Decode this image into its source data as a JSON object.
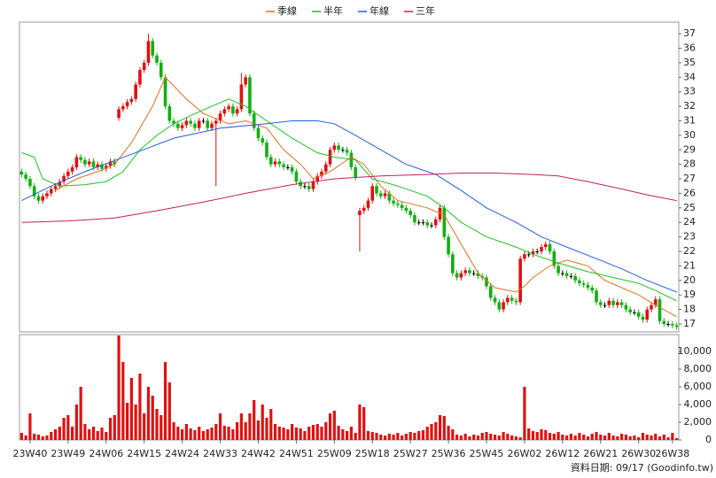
{
  "chart_data": [
    {
      "type": "candlestick",
      "legend": "top",
      "up_color": "#e01010",
      "down_color": "#10b010",
      "flat_color": "#000000",
      "xlim": [
        -0.5,
        155.5
      ],
      "ylim": [
        16.45,
        37.8
      ],
      "yticks": [
        17,
        18,
        19,
        20,
        21,
        22,
        23,
        24,
        25,
        26,
        27,
        28,
        29,
        30,
        31,
        32,
        33,
        34,
        35,
        36,
        37
      ],
      "open": [
        27.5,
        27.3,
        27.0,
        26.5,
        25.8,
        25.5,
        25.8,
        26.0,
        26.3,
        26.5,
        26.8,
        27.2,
        27.5,
        27.8,
        28.5,
        28.3,
        28.0,
        28.2,
        27.8,
        28.0,
        27.7,
        27.9,
        28.2,
        31.2,
        31.8,
        32.0,
        32.3,
        32.5,
        33.5,
        34.5,
        35.0,
        36.5,
        35.5,
        35.0,
        34.0,
        32.0,
        31.0,
        30.8,
        30.5,
        30.7,
        31.0,
        30.8,
        30.5,
        31.0,
        31.0,
        30.5,
        30.8,
        31.0,
        31.5,
        31.8,
        32.0,
        31.5,
        31.8,
        33.5,
        34.0,
        31.5,
        30.5,
        29.8,
        29.5,
        28.5,
        28.0,
        28.2,
        28.0,
        27.8,
        27.8,
        27.5,
        26.8,
        26.5,
        26.5,
        26.3,
        26.8,
        27.2,
        27.5,
        28.0,
        29.0,
        29.3,
        29.0,
        29.0,
        28.8,
        27.8,
        24.5,
        24.8,
        25.0,
        25.5,
        26.5,
        26.0,
        25.8,
        26.0,
        25.5,
        25.3,
        25.2,
        25.0,
        24.8,
        24.5,
        24.0,
        24.0,
        24.0,
        23.8,
        23.8,
        24.2,
        25.0,
        23.0,
        21.8,
        20.5,
        20.2,
        20.5,
        20.7,
        20.5,
        20.5,
        20.3,
        20.2,
        19.6,
        18.8,
        18.5,
        18.0,
        18.5,
        18.8,
        18.6,
        18.5,
        21.5,
        21.8,
        21.8,
        22.0,
        22.0,
        22.3,
        22.5,
        22.0,
        21.0,
        20.5,
        20.5,
        20.3,
        20.3,
        20.0,
        19.8,
        19.7,
        19.5,
        19.3,
        18.5,
        18.3,
        18.3,
        18.6,
        18.3,
        18.5,
        18.3,
        18.0,
        17.8,
        17.8,
        17.5,
        17.3,
        18.0,
        18.3,
        18.7,
        17.2,
        17.0,
        17.0,
        16.9
      ],
      "high": [
        27.7,
        27.5,
        27.2,
        26.7,
        26.0,
        26.0,
        26.2,
        26.5,
        26.7,
        27.0,
        27.4,
        27.7,
        28.0,
        28.7,
        28.7,
        28.5,
        28.4,
        28.4,
        28.2,
        28.2,
        28.1,
        28.4,
        28.4,
        32.0,
        32.2,
        32.5,
        32.7,
        33.7,
        34.7,
        35.2,
        37.0,
        36.7,
        35.7,
        35.2,
        34.2,
        32.2,
        31.2,
        31.0,
        30.9,
        31.2,
        31.2,
        31.0,
        31.2,
        31.2,
        31.2,
        31.0,
        31.2,
        31.7,
        32.0,
        32.2,
        32.2,
        32.0,
        34.3,
        34.2,
        34.2,
        31.7,
        30.7,
        30.0,
        29.7,
        28.7,
        28.4,
        28.4,
        28.2,
        28.0,
        28.0,
        27.7,
        27.0,
        26.7,
        26.7,
        27.0,
        27.4,
        27.7,
        28.2,
        29.2,
        29.5,
        29.5,
        29.2,
        29.2,
        29.0,
        28.0,
        25.0,
        25.2,
        25.7,
        26.7,
        26.7,
        26.2,
        26.2,
        26.2,
        25.7,
        25.5,
        25.4,
        25.2,
        25.0,
        24.7,
        24.2,
        24.2,
        24.2,
        24.0,
        24.4,
        25.2,
        25.2,
        23.2,
        22.0,
        20.7,
        20.7,
        20.9,
        20.9,
        20.7,
        20.7,
        20.5,
        20.4,
        19.8,
        19.0,
        18.7,
        18.7,
        19.0,
        19.0,
        18.8,
        21.7,
        22.0,
        22.0,
        22.2,
        22.2,
        22.5,
        22.7,
        22.7,
        22.2,
        21.2,
        20.7,
        20.7,
        20.5,
        20.5,
        20.2,
        20.0,
        19.9,
        19.7,
        19.5,
        18.7,
        18.5,
        18.8,
        18.8,
        18.7,
        18.7,
        18.5,
        18.2,
        18.0,
        18.0,
        17.7,
        18.2,
        18.5,
        18.9,
        18.9,
        17.4,
        17.2,
        17.2,
        17.1
      ],
      "low": [
        27.1,
        26.8,
        26.3,
        25.6,
        25.3,
        25.3,
        25.6,
        25.8,
        26.1,
        26.3,
        26.6,
        27.0,
        27.3,
        27.6,
        28.1,
        27.8,
        27.8,
        27.6,
        27.6,
        27.5,
        27.5,
        27.7,
        27.8,
        31.0,
        31.6,
        31.8,
        32.1,
        32.3,
        33.3,
        34.3,
        34.8,
        35.3,
        34.8,
        33.8,
        31.8,
        30.8,
        30.6,
        30.3,
        30.3,
        30.5,
        30.6,
        30.3,
        30.3,
        30.8,
        30.3,
        30.3,
        26.5,
        30.8,
        31.3,
        31.6,
        31.3,
        31.3,
        31.6,
        33.3,
        31.3,
        30.3,
        29.6,
        29.3,
        28.3,
        27.8,
        27.8,
        27.8,
        27.6,
        27.6,
        27.3,
        26.6,
        26.3,
        26.3,
        26.1,
        26.1,
        26.6,
        27.0,
        27.3,
        27.8,
        28.8,
        28.8,
        28.8,
        28.6,
        27.6,
        26.9,
        22.0,
        24.6,
        24.8,
        25.3,
        25.8,
        25.6,
        25.6,
        25.3,
        25.1,
        25.0,
        24.8,
        24.6,
        24.3,
        23.8,
        23.8,
        23.8,
        23.6,
        23.6,
        23.6,
        24.0,
        22.8,
        21.6,
        20.3,
        20.0,
        20.0,
        20.3,
        20.3,
        20.3,
        20.1,
        20.0,
        19.4,
        18.6,
        18.3,
        17.8,
        17.8,
        18.3,
        18.4,
        18.3,
        18.3,
        21.3,
        21.6,
        21.6,
        21.8,
        21.8,
        22.1,
        21.8,
        20.8,
        20.3,
        20.3,
        20.1,
        20.1,
        19.8,
        19.6,
        19.5,
        19.3,
        19.1,
        18.3,
        18.1,
        18.1,
        18.1,
        18.1,
        18.1,
        18.1,
        17.8,
        17.6,
        17.6,
        17.3,
        17.1,
        17.1,
        17.8,
        18.1,
        17.0,
        16.8,
        16.8,
        16.7,
        16.6
      ],
      "close": [
        27.3,
        27.0,
        26.5,
        25.8,
        25.5,
        25.8,
        26.0,
        26.3,
        26.5,
        26.8,
        27.2,
        27.5,
        27.8,
        28.5,
        28.3,
        28.0,
        28.2,
        27.8,
        28.0,
        27.7,
        27.9,
        28.2,
        28.0,
        31.8,
        32.0,
        32.3,
        32.5,
        33.5,
        34.5,
        35.0,
        36.5,
        35.5,
        35.0,
        34.0,
        32.0,
        31.0,
        30.8,
        30.5,
        30.7,
        31.0,
        30.8,
        30.5,
        31.0,
        31.0,
        30.5,
        30.8,
        31.0,
        31.5,
        31.8,
        32.0,
        31.5,
        31.8,
        33.5,
        34.0,
        31.5,
        30.5,
        29.8,
        29.5,
        28.5,
        28.0,
        28.2,
        28.0,
        27.8,
        27.8,
        27.5,
        26.8,
        26.5,
        26.5,
        26.3,
        26.8,
        27.2,
        27.5,
        28.0,
        29.0,
        29.3,
        29.0,
        29.0,
        28.8,
        27.8,
        27.1,
        24.8,
        25.0,
        25.5,
        26.5,
        26.0,
        25.8,
        26.0,
        25.5,
        25.3,
        25.2,
        25.0,
        24.8,
        24.5,
        24.0,
        24.0,
        24.0,
        23.8,
        23.8,
        24.2,
        25.0,
        23.0,
        21.8,
        20.5,
        20.2,
        20.5,
        20.7,
        20.5,
        20.5,
        20.3,
        20.2,
        19.6,
        18.8,
        18.5,
        18.0,
        18.5,
        18.8,
        18.6,
        18.5,
        21.5,
        21.8,
        21.8,
        22.0,
        22.0,
        22.3,
        22.5,
        22.0,
        21.0,
        20.5,
        20.5,
        20.3,
        20.3,
        20.0,
        19.8,
        19.7,
        19.5,
        19.3,
        18.5,
        18.3,
        18.3,
        18.6,
        18.3,
        18.5,
        18.3,
        18.0,
        17.8,
        17.8,
        17.5,
        17.3,
        18.0,
        18.3,
        18.7,
        17.2,
        17.0,
        17.0,
        16.9,
        16.8
      ],
      "series": [
        {
          "name": "季線",
          "color": "#e07020",
          "x": [
            8,
            13,
            18,
            22,
            26,
            31,
            34,
            39,
            43,
            49,
            53,
            58,
            62,
            66,
            69,
            73,
            78,
            81,
            85,
            89,
            96,
            100,
            104,
            108,
            112,
            117,
            119,
            121,
            125,
            129,
            134,
            138,
            142,
            146,
            150,
            155
          ],
          "values": [
            26.2,
            27.0,
            27.5,
            28.0,
            29.5,
            32.0,
            34.0,
            32.5,
            31.5,
            30.8,
            31.0,
            30.5,
            29.0,
            28.0,
            27.0,
            27.5,
            28.5,
            28.0,
            26.5,
            25.5,
            25.0,
            24.5,
            22.5,
            20.5,
            19.5,
            19.2,
            19.6,
            20.2,
            21.0,
            21.4,
            21.0,
            20.0,
            19.5,
            19.0,
            18.3,
            17.5
          ]
        },
        {
          "name": "半年",
          "color": "#20c020",
          "x": [
            0,
            3,
            5,
            9,
            15,
            20,
            24,
            28,
            32,
            36,
            41,
            45,
            49,
            53,
            58,
            64,
            70,
            74,
            79,
            83,
            89,
            96,
            100,
            104,
            110,
            117,
            121,
            127,
            134,
            140,
            146,
            150,
            155
          ],
          "values": [
            28.8,
            28.5,
            27.0,
            26.5,
            26.6,
            26.8,
            27.5,
            29.0,
            30.0,
            30.8,
            31.5,
            32.0,
            32.5,
            32.0,
            31.0,
            29.8,
            28.8,
            28.5,
            28.3,
            27.0,
            26.5,
            25.8,
            25.0,
            24.0,
            23.0,
            22.3,
            21.8,
            21.2,
            20.6,
            20.2,
            19.8,
            19.3,
            18.6
          ]
        },
        {
          "name": "年線",
          "color": "#2060e0",
          "x": [
            0,
            7,
            15,
            26,
            36,
            47,
            58,
            64,
            70,
            74,
            79,
            85,
            91,
            98,
            104,
            110,
            117,
            123,
            129,
            136,
            142,
            148,
            155
          ],
          "values": [
            25.5,
            26.5,
            27.5,
            28.7,
            29.8,
            30.5,
            30.8,
            31.0,
            31.0,
            30.8,
            30.0,
            29.0,
            28.0,
            27.3,
            26.2,
            25.0,
            24.0,
            23.0,
            22.3,
            21.5,
            20.8,
            20.0,
            19.2
          ]
        },
        {
          "name": "三年",
          "color": "#c02060",
          "x": [
            0,
            11,
            22,
            32,
            43,
            53,
            64,
            74,
            85,
            96,
            104,
            112,
            121,
            127,
            134,
            142,
            148,
            155
          ],
          "values": [
            24.0,
            24.1,
            24.3,
            24.8,
            25.4,
            26.0,
            26.6,
            27.0,
            27.2,
            27.3,
            27.4,
            27.4,
            27.3,
            27.2,
            26.8,
            26.3,
            25.9,
            25.5
          ]
        }
      ]
    },
    {
      "type": "bar",
      "color": "#e01010",
      "xlim": [
        -0.5,
        155.5
      ],
      "ylim": [
        0,
        11900
      ],
      "yticks": [
        0,
        {
          "value": 2000,
          "label": "2,000"
        },
        {
          "value": 4000,
          "label": "4,000"
        },
        {
          "value": 6000,
          "label": "6,000"
        },
        {
          "value": 8000,
          "label": "8,000"
        },
        {
          "value": 10000,
          "label": "10,000"
        }
      ],
      "xticks": [
        {
          "value": 2,
          "label": "23W40"
        },
        {
          "value": 11,
          "label": "23W49"
        },
        {
          "value": 20,
          "label": "24W06"
        },
        {
          "value": 29,
          "label": "24W15"
        },
        {
          "value": 38,
          "label": "24W24"
        },
        {
          "value": 47,
          "label": "24W33"
        },
        {
          "value": 56,
          "label": "24W42"
        },
        {
          "value": 65,
          "label": "24W51"
        },
        {
          "value": 74,
          "label": "25W09"
        },
        {
          "value": 83,
          "label": "25W18"
        },
        {
          "value": 92,
          "label": "25W27"
        },
        {
          "value": 101,
          "label": "25W36"
        },
        {
          "value": 110,
          "label": "25W45"
        },
        {
          "value": 119,
          "label": "26W02"
        },
        {
          "value": 128,
          "label": "26W12"
        },
        {
          "value": 137,
          "label": "26W21"
        },
        {
          "value": 146,
          "label": "26W30"
        },
        {
          "value": 154,
          "label": "26W38"
        }
      ],
      "values": [
        800,
        500,
        3000,
        700,
        600,
        400,
        500,
        900,
        1200,
        1500,
        2500,
        2800,
        1500,
        4000,
        6000,
        1800,
        1200,
        1500,
        1000,
        1400,
        900,
        2500,
        2800,
        11800,
        8800,
        4200,
        7000,
        4000,
        7500,
        3000,
        6000,
        5000,
        3500,
        2800,
        8800,
        6500,
        2000,
        1500,
        1200,
        1800,
        1300,
        1100,
        1500,
        1000,
        1200,
        1400,
        1800,
        3000,
        1600,
        1500,
        1200,
        2000,
        3000,
        2000,
        3000,
        4500,
        2200,
        4000,
        2500,
        3500,
        1800,
        1500,
        1400,
        1200,
        1800,
        1400,
        1300,
        1000,
        1500,
        1700,
        1800,
        1500,
        2000,
        3000,
        3300,
        1600,
        1200,
        1000,
        1500,
        800,
        4000,
        3700,
        1000,
        900,
        800,
        600,
        500,
        700,
        600,
        800,
        500,
        700,
        900,
        800,
        1000,
        1100,
        1500,
        1800,
        2000,
        2800,
        2700,
        1600,
        1200,
        600,
        500,
        700,
        400,
        600,
        500,
        800,
        900,
        700,
        600,
        500,
        900,
        700,
        500,
        400,
        300,
        6000,
        1300,
        1000,
        900,
        1200,
        1100,
        800,
        700,
        900,
        600,
        500,
        700,
        500,
        800,
        600,
        400,
        700,
        900,
        600,
        500,
        800,
        500,
        400,
        700,
        600,
        400,
        500,
        300,
        800,
        600,
        500,
        700,
        400,
        600,
        300,
        800,
        200
      ],
      "source": "資料日期: 09/17 (Goodinfo.tw)"
    }
  ]
}
